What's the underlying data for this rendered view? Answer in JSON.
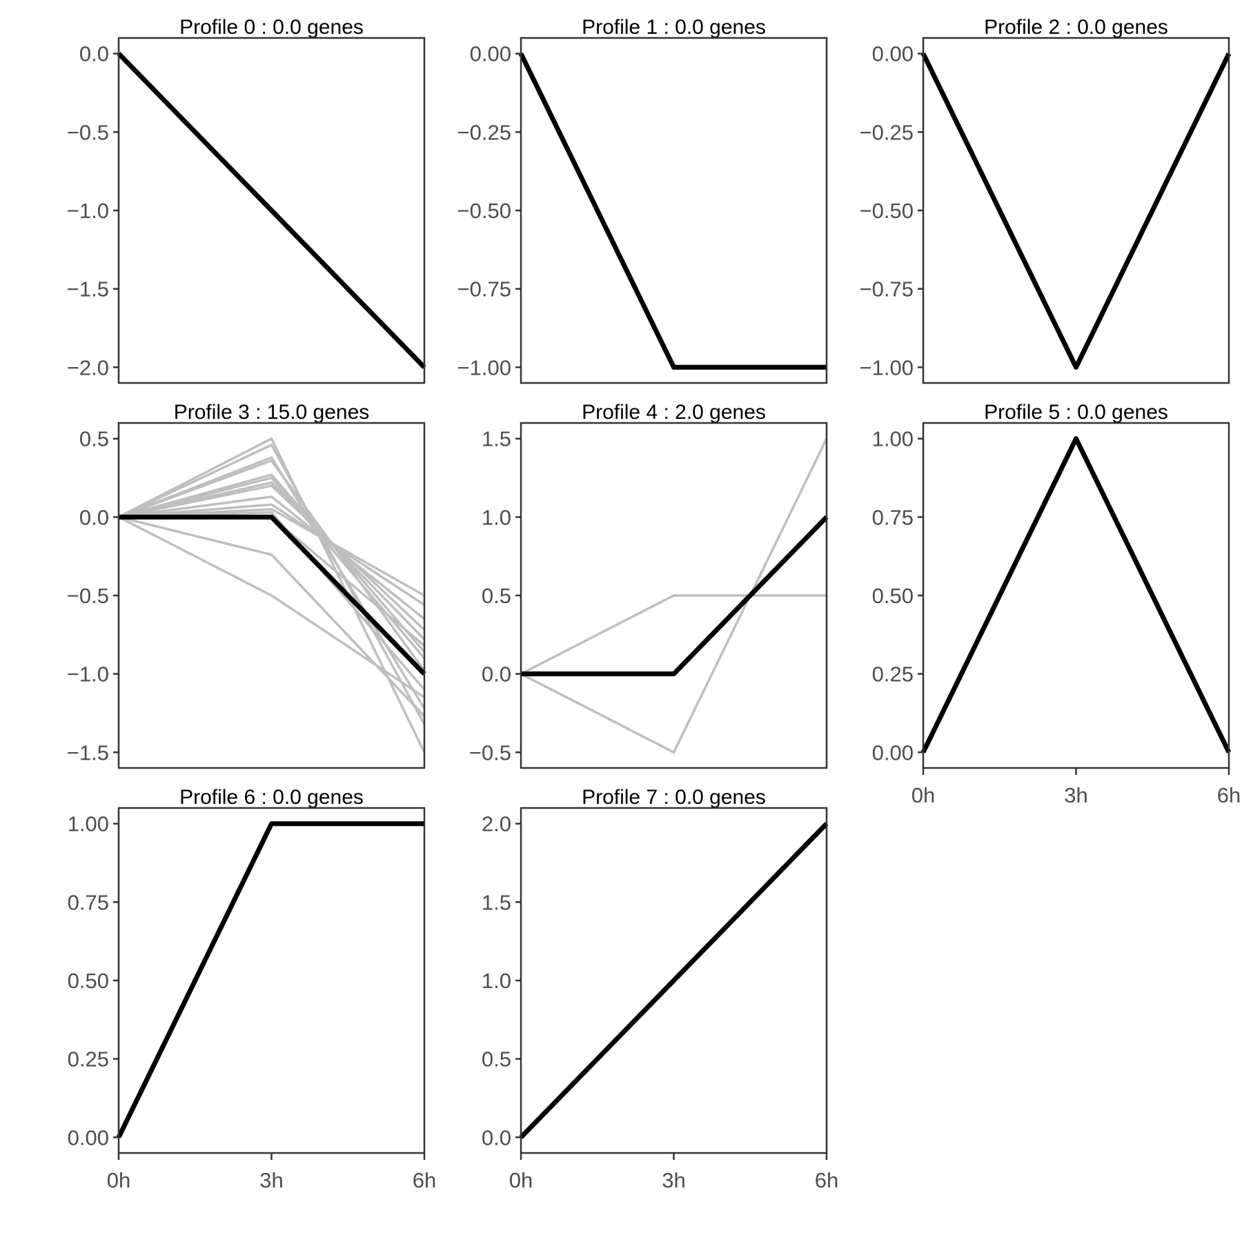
{
  "chart_data": [
    {
      "type": "line",
      "title": "Profile 0 : 0.0 genes",
      "categories": [
        "0h",
        "3h",
        "6h"
      ],
      "yticks": [
        "0.0",
        "−0.5",
        "−1.0",
        "−1.5",
        "−2.0"
      ],
      "ylim": [
        -2.1,
        0.1
      ],
      "show_x_axis": false,
      "profile": [
        0,
        -1,
        -2
      ],
      "genes": []
    },
    {
      "type": "line",
      "title": "Profile 1 : 0.0 genes",
      "categories": [
        "0h",
        "3h",
        "6h"
      ],
      "yticks": [
        "0.00",
        "−0.25",
        "−0.50",
        "−0.75",
        "−1.00"
      ],
      "ylim": [
        -1.05,
        0.05
      ],
      "show_x_axis": false,
      "profile": [
        0,
        -1,
        -1
      ],
      "genes": []
    },
    {
      "type": "line",
      "title": "Profile 2 : 0.0 genes",
      "categories": [
        "0h",
        "3h",
        "6h"
      ],
      "yticks": [
        "0.00",
        "−0.25",
        "−0.50",
        "−0.75",
        "−1.00"
      ],
      "ylim": [
        -1.05,
        0.05
      ],
      "show_x_axis": false,
      "profile": [
        0,
        -1,
        0
      ],
      "genes": []
    },
    {
      "type": "line",
      "title": "Profile 3 : 15.0 genes",
      "categories": [
        "0h",
        "3h",
        "6h"
      ],
      "yticks": [
        "0.5",
        "0.0",
        "−0.5",
        "−1.0",
        "−1.5"
      ],
      "ylim": [
        -1.6,
        0.6
      ],
      "show_x_axis": false,
      "profile": [
        0,
        0,
        -1
      ],
      "genes": [
        [
          0,
          0.5,
          -1.5
        ],
        [
          0,
          0.46,
          -1.32
        ],
        [
          0,
          0.38,
          -1.22
        ],
        [
          0,
          0.36,
          -0.98
        ],
        [
          0,
          0.27,
          -0.86
        ],
        [
          0,
          0.25,
          -0.9
        ],
        [
          0,
          0.22,
          -0.78
        ],
        [
          0,
          0.2,
          -0.72
        ],
        [
          0,
          0.13,
          -0.65
        ],
        [
          0,
          0.08,
          -0.56
        ],
        [
          0,
          0.05,
          -0.5
        ],
        [
          0,
          0.03,
          -1.1
        ],
        [
          0,
          0.0,
          -0.82
        ],
        [
          0,
          -0.24,
          -1.27
        ],
        [
          0,
          -0.5,
          -1.15
        ]
      ]
    },
    {
      "type": "line",
      "title": "Profile 4 : 2.0 genes",
      "categories": [
        "0h",
        "3h",
        "6h"
      ],
      "yticks": [
        "1.5",
        "1.0",
        "0.5",
        "0.0",
        "−0.5"
      ],
      "ylim": [
        -0.6,
        1.6
      ],
      "show_x_axis": false,
      "profile": [
        0,
        0,
        1
      ],
      "genes": [
        [
          0,
          0.5,
          0.5
        ],
        [
          0,
          -0.5,
          1.5
        ]
      ]
    },
    {
      "type": "line",
      "title": "Profile 5 : 0.0 genes",
      "categories": [
        "0h",
        "3h",
        "6h"
      ],
      "yticks": [
        "1.00",
        "0.75",
        "0.50",
        "0.25",
        "0.00"
      ],
      "ylim": [
        -0.05,
        1.05
      ],
      "show_x_axis": true,
      "profile": [
        0,
        1,
        0
      ],
      "genes": []
    },
    {
      "type": "line",
      "title": "Profile 6 : 0.0 genes",
      "categories": [
        "0h",
        "3h",
        "6h"
      ],
      "yticks": [
        "1.00",
        "0.75",
        "0.50",
        "0.25",
        "0.00"
      ],
      "ylim": [
        -0.05,
        1.05
      ],
      "show_x_axis": true,
      "profile": [
        0,
        1,
        1
      ],
      "genes": []
    },
    {
      "type": "line",
      "title": "Profile 7 : 0.0 genes",
      "categories": [
        "0h",
        "3h",
        "6h"
      ],
      "yticks": [
        "2.0",
        "1.5",
        "1.0",
        "0.5",
        "0.0"
      ],
      "ylim": [
        -0.1,
        2.1
      ],
      "show_x_axis": true,
      "profile": [
        0,
        1,
        2
      ],
      "genes": []
    }
  ],
  "colors": {
    "profile_line": "#000000",
    "gene_line": "#bebebe",
    "axis": "#333333",
    "tick_text": "#4d4d4d",
    "background": "#ffffff"
  }
}
